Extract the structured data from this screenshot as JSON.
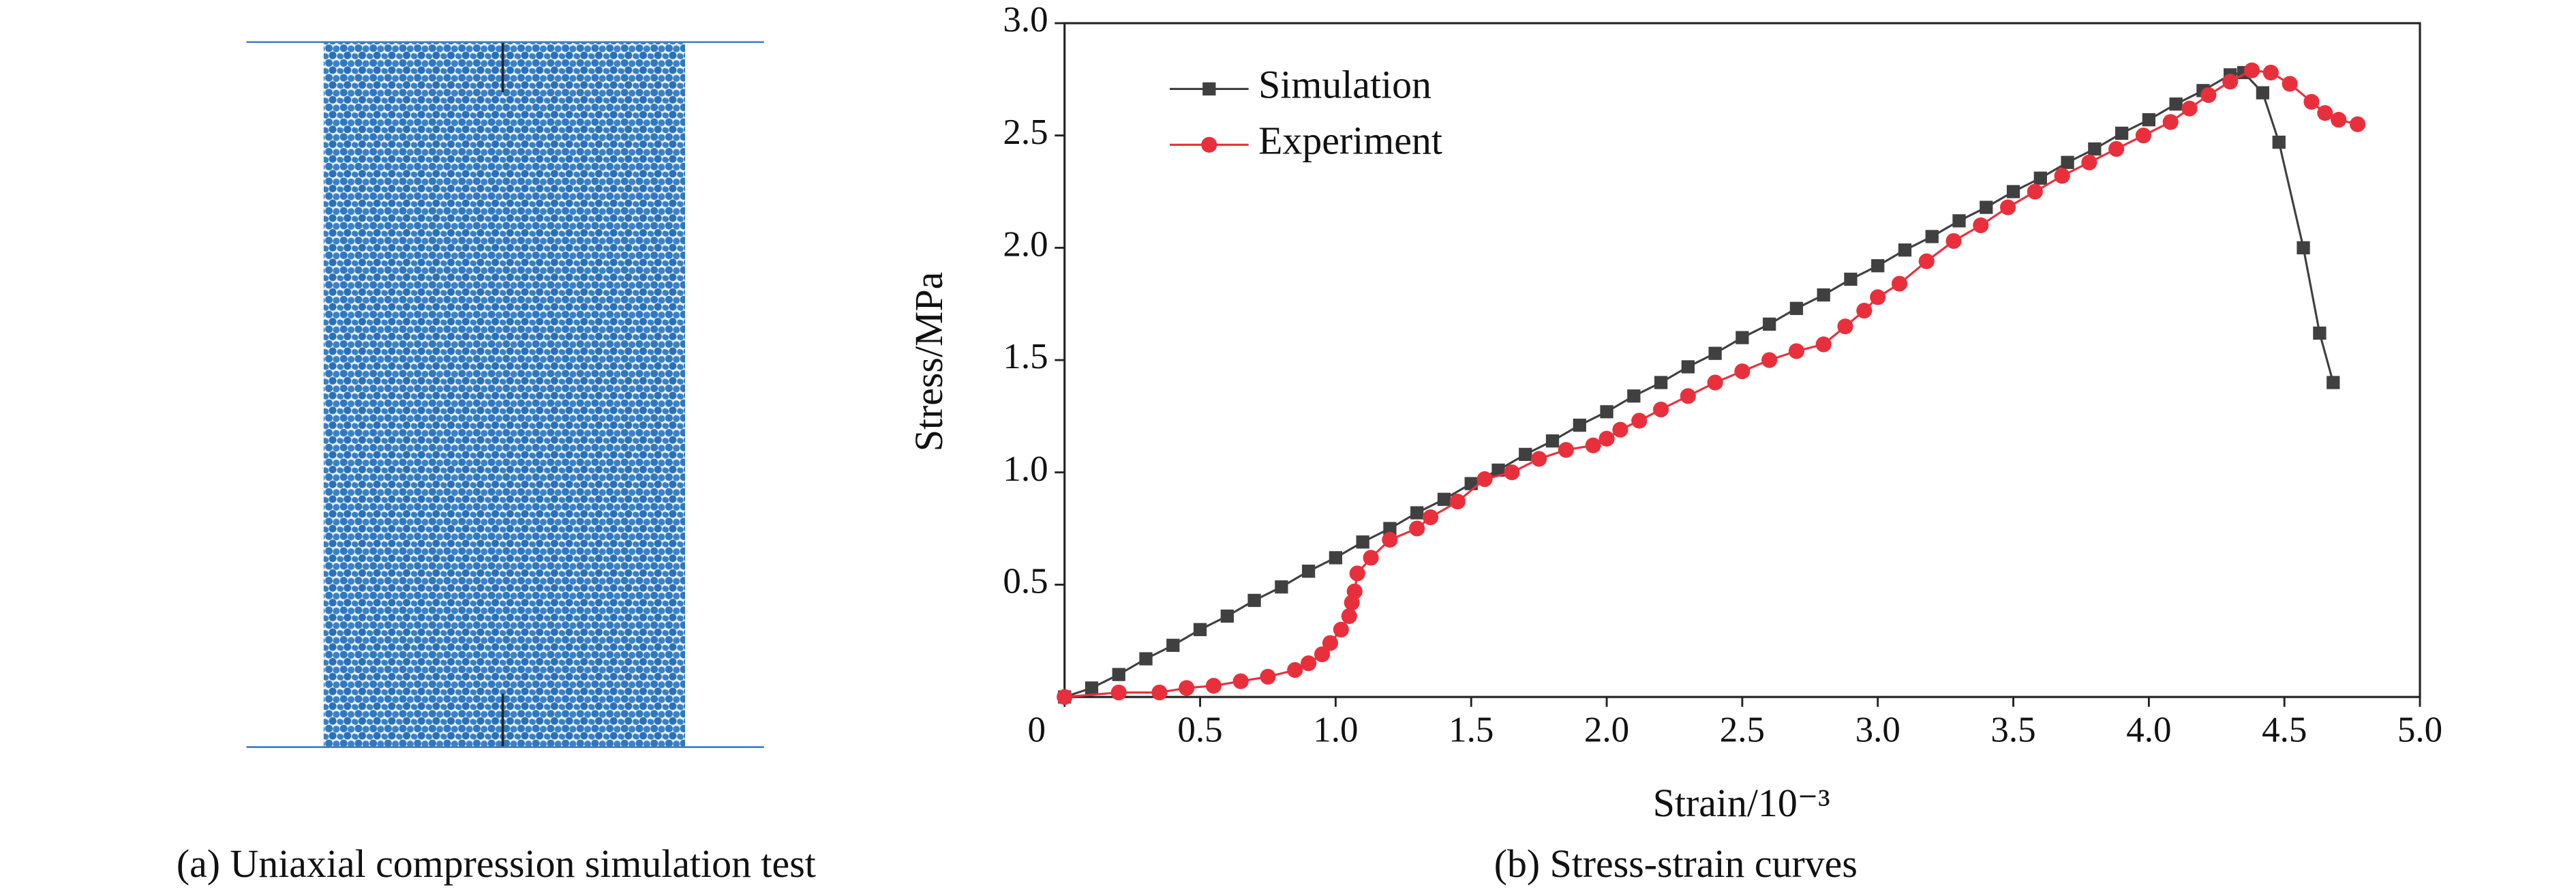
{
  "panel_a": {
    "caption": "(a) Uniaxial compression simulation test"
  },
  "chart_data": {
    "type": "line",
    "caption": "(b) Stress-strain curves",
    "xlabel": "Strain/10⁻³",
    "ylabel": "Stress/MPa",
    "xlim": [
      0,
      5
    ],
    "ylim": [
      0,
      3
    ],
    "xticks": [
      0,
      0.5,
      {
        "value": 1,
        "label": "1.0"
      },
      1.5,
      {
        "value": 2,
        "label": "2.0"
      },
      2.5,
      {
        "value": 3,
        "label": "3.0"
      },
      3.5,
      {
        "value": 4,
        "label": "4.0"
      },
      4.5,
      {
        "value": 5,
        "label": "5.0"
      }
    ],
    "yticks": [
      0.5,
      {
        "value": 1,
        "label": "1.0"
      },
      1.5,
      {
        "value": 2,
        "label": "2.0"
      },
      2.5,
      {
        "value": 3,
        "label": "3.0"
      }
    ],
    "legend": "upper left",
    "series": [
      {
        "name": "Simulation",
        "color": "#404040",
        "marker": "square",
        "x": [
          0,
          0.1,
          0.2,
          0.3,
          0.4,
          0.5,
          0.6,
          0.7,
          0.8,
          0.9,
          1.0,
          1.1,
          1.2,
          1.3,
          1.4,
          1.5,
          1.6,
          1.7,
          1.8,
          1.9,
          2.0,
          2.1,
          2.2,
          2.3,
          2.4,
          2.5,
          2.6,
          2.7,
          2.8,
          2.9,
          3.0,
          3.1,
          3.2,
          3.3,
          3.4,
          3.5,
          3.6,
          3.7,
          3.8,
          3.9,
          4.0,
          4.1,
          4.2,
          4.3,
          4.35,
          4.42,
          4.48,
          4.57,
          4.63,
          4.68
        ],
        "values": [
          0,
          0.04,
          0.1,
          0.17,
          0.23,
          0.3,
          0.36,
          0.43,
          0.49,
          0.56,
          0.62,
          0.69,
          0.75,
          0.82,
          0.88,
          0.95,
          1.01,
          1.08,
          1.14,
          1.21,
          1.27,
          1.34,
          1.4,
          1.47,
          1.53,
          1.6,
          1.66,
          1.73,
          1.79,
          1.86,
          1.92,
          1.99,
          2.05,
          2.12,
          2.18,
          2.25,
          2.31,
          2.38,
          2.44,
          2.51,
          2.57,
          2.64,
          2.7,
          2.77,
          2.78,
          2.69,
          2.47,
          2.0,
          1.62,
          1.4
        ]
      },
      {
        "name": "Experiment",
        "color": "#e8303c",
        "marker": "circle",
        "x": [
          0,
          0.2,
          0.35,
          0.45,
          0.55,
          0.65,
          0.75,
          0.85,
          0.9,
          0.95,
          0.98,
          1.02,
          1.05,
          1.06,
          1.07,
          1.08,
          1.13,
          1.2,
          1.3,
          1.35,
          1.45,
          1.55,
          1.65,
          1.75,
          1.85,
          1.95,
          2.0,
          2.05,
          2.12,
          2.2,
          2.3,
          2.4,
          2.5,
          2.6,
          2.7,
          2.8,
          2.88,
          2.95,
          3.0,
          3.08,
          3.18,
          3.28,
          3.38,
          3.48,
          3.58,
          3.68,
          3.78,
          3.88,
          3.98,
          4.08,
          4.15,
          4.22,
          4.3,
          4.38,
          4.45,
          4.52,
          4.6,
          4.65,
          4.7,
          4.77
        ],
        "values": [
          0,
          0.02,
          0.02,
          0.04,
          0.05,
          0.07,
          0.09,
          0.12,
          0.15,
          0.19,
          0.24,
          0.3,
          0.36,
          0.42,
          0.47,
          0.55,
          0.62,
          0.7,
          0.75,
          0.8,
          0.87,
          0.97,
          1.0,
          1.06,
          1.1,
          1.12,
          1.15,
          1.19,
          1.23,
          1.28,
          1.34,
          1.4,
          1.45,
          1.5,
          1.54,
          1.57,
          1.65,
          1.72,
          1.78,
          1.84,
          1.94,
          2.03,
          2.1,
          2.18,
          2.25,
          2.32,
          2.38,
          2.44,
          2.5,
          2.56,
          2.62,
          2.68,
          2.74,
          2.79,
          2.78,
          2.73,
          2.65,
          2.6,
          2.57,
          2.55
        ]
      }
    ]
  }
}
